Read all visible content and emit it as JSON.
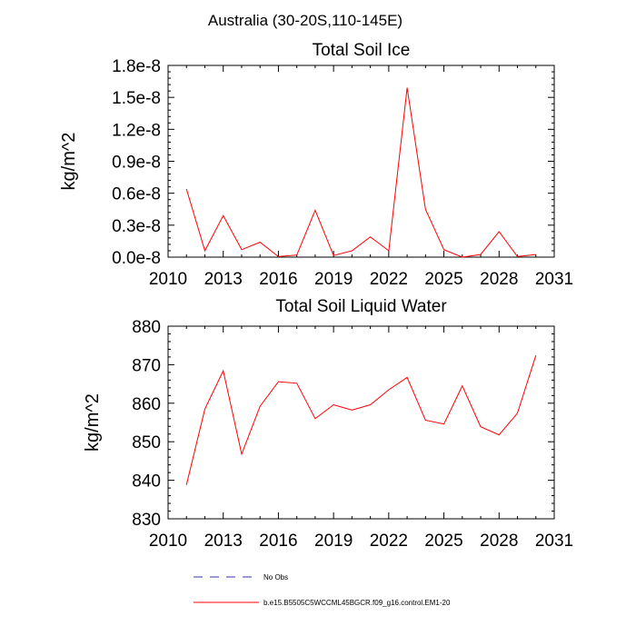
{
  "figure_title": "Australia (30-20S,110-145E)",
  "legend": [
    {
      "label": "No Obs",
      "style": "dashed",
      "color": "#3333aa"
    },
    {
      "label": "b.e15.B5505C5WCCML45BGCR.f09_g16.control.EM1-20",
      "style": "solid",
      "color": "#ff0000"
    }
  ],
  "chart_data": [
    {
      "type": "line",
      "title": "Total Soil Ice",
      "xlabel": "",
      "ylabel": "kg/m^2",
      "xlim": [
        2010,
        2031
      ],
      "ylim": [
        0.0,
        1.8e-08
      ],
      "xticks": [
        2010,
        2013,
        2016,
        2019,
        2022,
        2025,
        2028,
        2031
      ],
      "yticks": [
        0.0,
        3e-09,
        6e-09,
        9e-09,
        1.2e-08,
        1.5e-08,
        1.8e-08
      ],
      "yticklabels": [
        "0.0e-8",
        "0.3e-8",
        "0.6e-8",
        "0.9e-8",
        "1.2e-8",
        "1.5e-8",
        "1.8e-8"
      ],
      "grid": false,
      "series": [
        {
          "color": "#ff0000",
          "x": [
            2011,
            2012,
            2013,
            2014,
            2015,
            2016,
            2017,
            2018,
            2019,
            2020,
            2021,
            2022,
            2023,
            2024,
            2025,
            2026,
            2027,
            2028,
            2029,
            2030
          ],
          "y": [
            6.4e-09,
            6e-10,
            3.9e-09,
            7e-10,
            1.4e-09,
            5e-11,
            2e-10,
            4.4e-09,
            1.5e-10,
            6e-10,
            1.9e-09,
            6e-10,
            1.59e-08,
            4.5e-09,
            7e-10,
            0.0,
            2.5e-10,
            2.4e-09,
            5e-11,
            2.5e-10
          ]
        }
      ]
    },
    {
      "type": "line",
      "title": "Total Soil Liquid Water",
      "xlabel": "",
      "ylabel": "kg/m^2",
      "xlim": [
        2010,
        2031
      ],
      "ylim": [
        830,
        880
      ],
      "xticks": [
        2010,
        2013,
        2016,
        2019,
        2022,
        2025,
        2028,
        2031
      ],
      "yticks": [
        830,
        840,
        850,
        860,
        870,
        880
      ],
      "yticklabels": [
        "830",
        "840",
        "850",
        "860",
        "870",
        "880"
      ],
      "grid": false,
      "series": [
        {
          "color": "#ff0000",
          "x": [
            2011,
            2012,
            2013,
            2014,
            2015,
            2016,
            2017,
            2018,
            2019,
            2020,
            2021,
            2022,
            2023,
            2024,
            2025,
            2026,
            2027,
            2028,
            2029,
            2030
          ],
          "y": [
            838.8,
            858.5,
            868.4,
            846.8,
            859.2,
            865.6,
            865.2,
            856.0,
            859.6,
            858.2,
            859.6,
            863.5,
            866.7,
            855.6,
            854.6,
            864.5,
            853.9,
            851.8,
            857.4,
            872.4
          ]
        }
      ]
    }
  ]
}
